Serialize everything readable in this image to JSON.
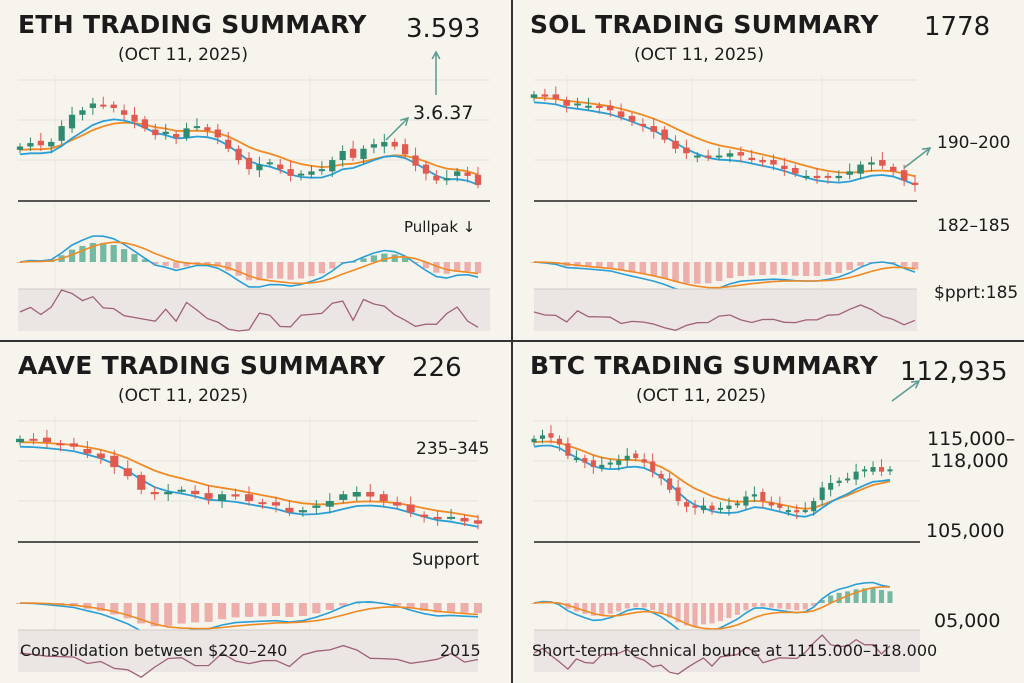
{
  "panels": [
    {
      "title": "ETH TRADING SUMMARY",
      "date": "(OCT 11, 2025)",
      "price": "3.593",
      "annotations": [
        "3.6.37",
        "Pullpak ↓"
      ]
    },
    {
      "title": "SOL TRADING SUMMARY",
      "date": "(OCT 11, 2025)",
      "price": "1778",
      "annotations": [
        "190–200",
        "182–185",
        "$pprt:185"
      ]
    },
    {
      "title": "AAVE TRADING SUMMARY",
      "date": "(OCT 11, 2025)",
      "price": "226",
      "annotations": [
        "235–345",
        "Support"
      ],
      "footer": "Consolidation between $220–240",
      "footer_right": "2015"
    },
    {
      "title": "BTC TRADING SUMMARY",
      "date": "(OCT 11, 2025)",
      "price": "112,935",
      "annotations": [
        "115,000–",
        "118,000",
        "105,000",
        "05,000"
      ],
      "footer": "Short-term technical bounce at 1115.000–118.000"
    }
  ],
  "colors": {
    "up": "#2e8b6f",
    "down": "#e05a4f",
    "fast_ma": "#2a9fd6",
    "slow_ma": "#f08a24",
    "rsi": "#a0607a",
    "background": "#f7f4ee"
  },
  "chart_data": [
    {
      "type": "candlestick",
      "series_name": "ETH",
      "closes": [
        42,
        45,
        43,
        46,
        60,
        70,
        74,
        80,
        78,
        76,
        70,
        64,
        58,
        52,
        55,
        50,
        58,
        60,
        56,
        50,
        40,
        30,
        22,
        26,
        28,
        22,
        16,
        18,
        20,
        22,
        30,
        38,
        32,
        40,
        44,
        46,
        42,
        35,
        25,
        18,
        12,
        14,
        20,
        16,
        8
      ],
      "indicators": [
        "moving averages",
        "MACD",
        "RSI"
      ]
    },
    {
      "type": "candlestick",
      "series_name": "SOL",
      "closes": [
        88,
        86,
        84,
        78,
        80,
        78,
        76,
        74,
        68,
        64,
        60,
        55,
        48,
        40,
        36,
        34,
        32,
        34,
        36,
        34,
        30,
        28,
        26,
        22,
        18,
        16,
        14,
        15,
        16,
        20,
        26,
        28,
        25,
        20,
        12,
        8
      ],
      "indicators": [
        "moving averages",
        "MACD",
        "RSI"
      ]
    },
    {
      "type": "candlestick",
      "series_name": "AAVE",
      "closes": [
        85,
        84,
        82,
        80,
        78,
        72,
        68,
        60,
        52,
        40,
        36,
        38,
        40,
        36,
        32,
        36,
        34,
        30,
        28,
        26,
        20,
        22,
        26,
        30,
        36,
        38,
        34,
        30,
        26,
        20,
        16,
        14,
        16,
        12,
        10
      ],
      "indicators": [
        "moving averages",
        "MACD",
        "RSI"
      ]
    },
    {
      "type": "candlestick",
      "series_name": "BTC",
      "closes": [
        85,
        88,
        86,
        80,
        70,
        68,
        64,
        60,
        62,
        64,
        66,
        70,
        68,
        64,
        56,
        50,
        40,
        30,
        25,
        24,
        26,
        22,
        24,
        26,
        28,
        34,
        36,
        30,
        26,
        24,
        22,
        20,
        22,
        30,
        42,
        46,
        48,
        50,
        56,
        58,
        60,
        56,
        58
      ],
      "indicators": [
        "moving averages",
        "MACD",
        "RSI"
      ]
    }
  ]
}
